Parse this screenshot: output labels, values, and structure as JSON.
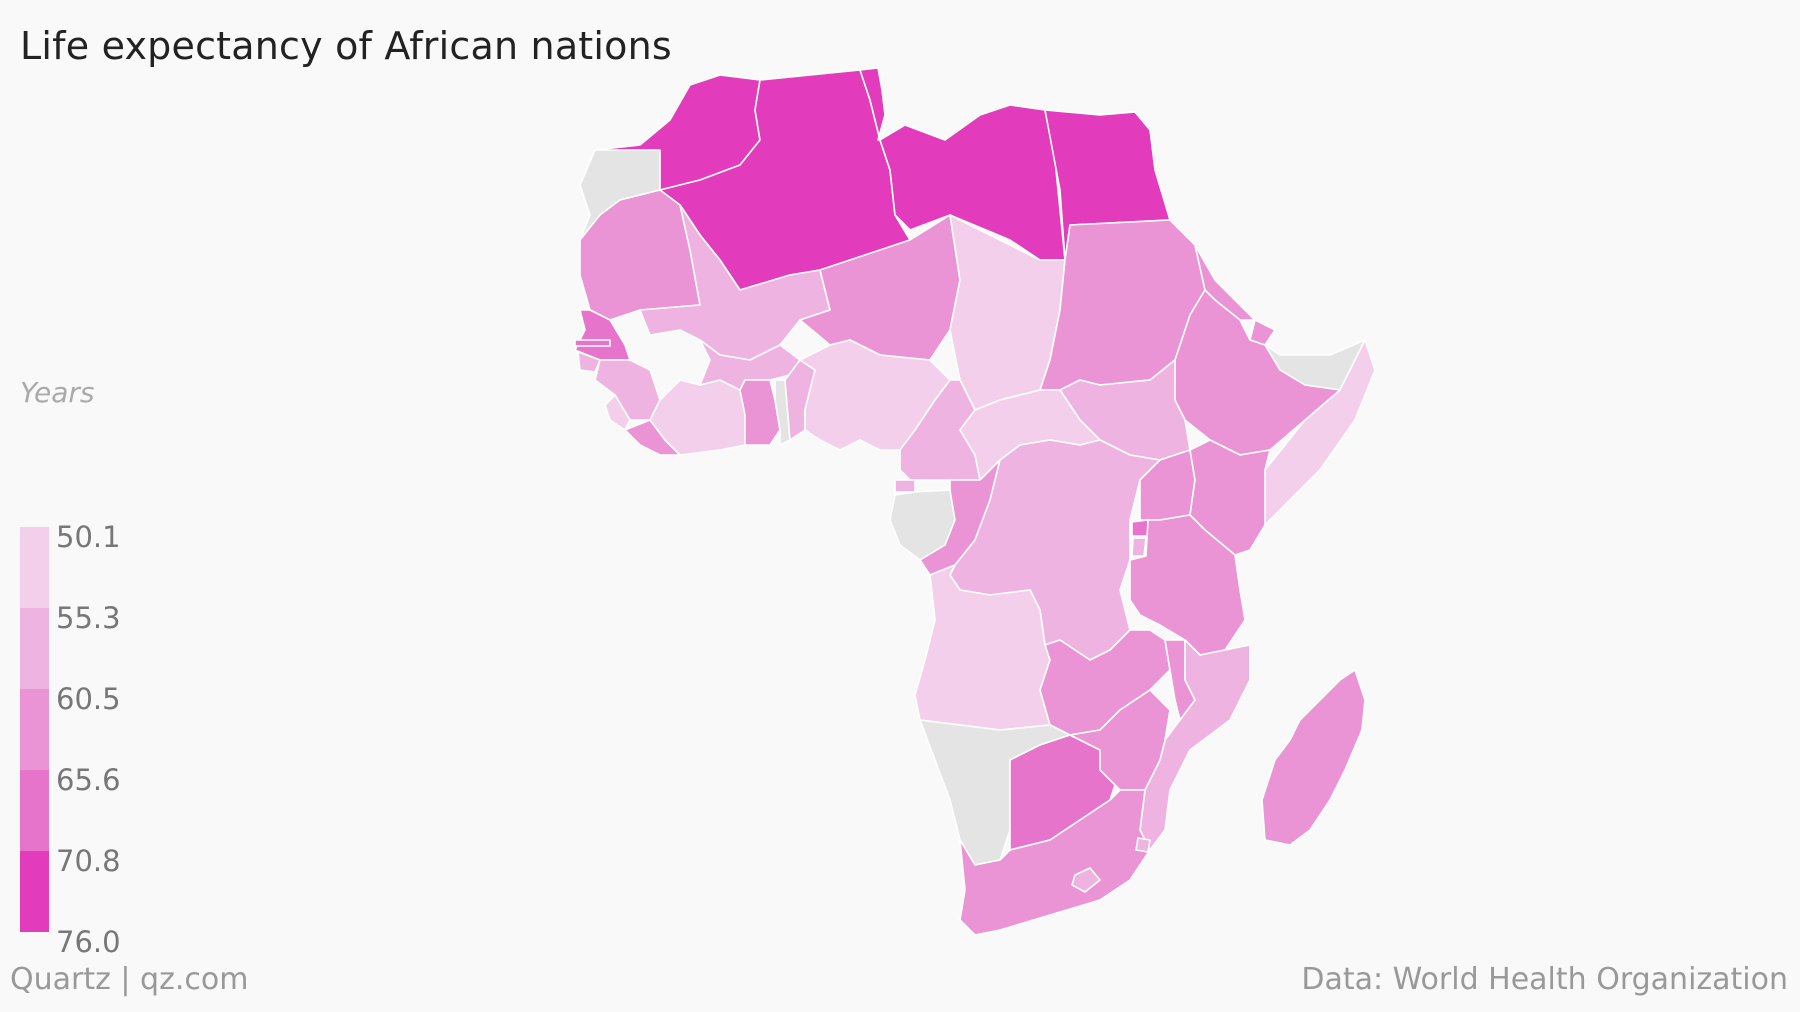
{
  "title": "Life expectancy of African nations",
  "legend": {
    "title": "Years",
    "ticks": [
      "50.1",
      "55.3",
      "60.5",
      "65.6",
      "70.8",
      "76.0"
    ],
    "colors": [
      "#f4cfec",
      "#efb3e1",
      "#ea93d5",
      "#e674cb",
      "#e23cbd"
    ],
    "no_data_color": "#e4e4e4"
  },
  "source": "Data: World Health Organization",
  "credit": "Quartz | qz.com",
  "map_data": {
    "type": "choropleth",
    "region": "Africa",
    "countries": [
      {
        "name": "Morocco",
        "bin": 5
      },
      {
        "name": "Algeria",
        "bin": 5
      },
      {
        "name": "Tunisia",
        "bin": 5
      },
      {
        "name": "Libya",
        "bin": 5
      },
      {
        "name": "Egypt",
        "bin": 5
      },
      {
        "name": "Western Sahara",
        "bin": 0
      },
      {
        "name": "Mauritania",
        "bin": 3
      },
      {
        "name": "Mali",
        "bin": 2
      },
      {
        "name": "Niger",
        "bin": 3
      },
      {
        "name": "Chad",
        "bin": 1
      },
      {
        "name": "Sudan",
        "bin": 3
      },
      {
        "name": "Eritrea",
        "bin": 3
      },
      {
        "name": "Djibouti",
        "bin": 3
      },
      {
        "name": "Somaliland",
        "bin": 0
      },
      {
        "name": "Somalia",
        "bin": 1
      },
      {
        "name": "Ethiopia",
        "bin": 3
      },
      {
        "name": "South Sudan",
        "bin": 2
      },
      {
        "name": "Senegal",
        "bin": 4
      },
      {
        "name": "Gambia",
        "bin": 4
      },
      {
        "name": "Guinea-Bissau",
        "bin": 2
      },
      {
        "name": "Guinea",
        "bin": 2
      },
      {
        "name": "Sierra Leone",
        "bin": 1
      },
      {
        "name": "Liberia",
        "bin": 3
      },
      {
        "name": "Cote d'Ivoire",
        "bin": 1
      },
      {
        "name": "Burkina Faso",
        "bin": 2
      },
      {
        "name": "Ghana",
        "bin": 3
      },
      {
        "name": "Togo",
        "bin": 0
      },
      {
        "name": "Benin",
        "bin": 2
      },
      {
        "name": "Nigeria",
        "bin": 1
      },
      {
        "name": "Cameroon",
        "bin": 2
      },
      {
        "name": "Central African Republic",
        "bin": 1
      },
      {
        "name": "Equatorial Guinea",
        "bin": 2
      },
      {
        "name": "Gabon",
        "bin": 0
      },
      {
        "name": "Republic of the Congo",
        "bin": 3
      },
      {
        "name": "DR Congo",
        "bin": 2
      },
      {
        "name": "Uganda",
        "bin": 3
      },
      {
        "name": "Kenya",
        "bin": 3
      },
      {
        "name": "Rwanda",
        "bin": 4
      },
      {
        "name": "Burundi",
        "bin": 2
      },
      {
        "name": "Tanzania",
        "bin": 3
      },
      {
        "name": "Angola",
        "bin": 1
      },
      {
        "name": "Zambia",
        "bin": 3
      },
      {
        "name": "Malawi",
        "bin": 3
      },
      {
        "name": "Mozambique",
        "bin": 2
      },
      {
        "name": "Namibia",
        "bin": 0
      },
      {
        "name": "Botswana",
        "bin": 4
      },
      {
        "name": "Zimbabwe",
        "bin": 3
      },
      {
        "name": "South Africa",
        "bin": 3
      },
      {
        "name": "Lesotho",
        "bin": 2
      },
      {
        "name": "Swaziland",
        "bin": 2
      },
      {
        "name": "Madagascar",
        "bin": 3
      }
    ]
  }
}
